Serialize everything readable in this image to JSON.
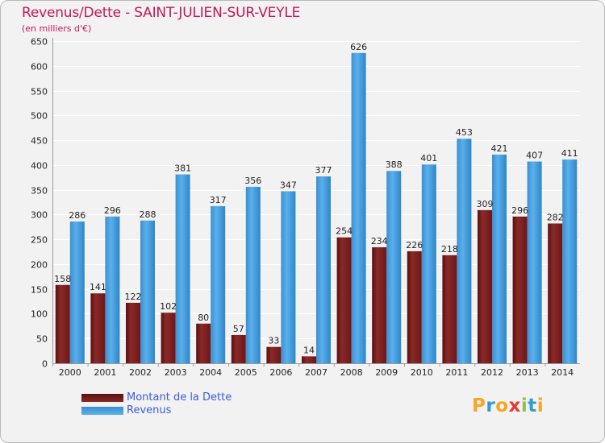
{
  "header": {
    "title": "Revenus/Dette - SAINT-JULIEN-SUR-VEYLE",
    "subtitle": "(en milliers d'€)"
  },
  "legend": {
    "dette_label": "Montant de la Dette",
    "revenus_label": "Revenus"
  },
  "brand": {
    "letters": [
      "P",
      "r",
      "o",
      "x",
      "i",
      "t",
      "i"
    ],
    "colors": [
      "#f5a623",
      "#2e9bd6",
      "#f5a623",
      "#e53935",
      "#8bc34a",
      "#2e9bd6",
      "#f5a623"
    ]
  },
  "colors": {
    "dette": "#7a1c1c",
    "revenus": "#4aa3e3",
    "grid": "#ffffff",
    "title": "#c2185b"
  },
  "chart_data": {
    "type": "bar",
    "title": "Revenus/Dette - SAINT-JULIEN-SUR-VEYLE",
    "ylabel": "(en milliers d'€)",
    "xlabel": "",
    "ylim": [
      0,
      650
    ],
    "yticks": [
      0,
      50,
      100,
      150,
      200,
      250,
      300,
      350,
      400,
      450,
      500,
      550,
      600,
      650
    ],
    "categories": [
      "2000",
      "2001",
      "2002",
      "2003",
      "2004",
      "2005",
      "2006",
      "2007",
      "2008",
      "2009",
      "2010",
      "2011",
      "2012",
      "2013",
      "2014"
    ],
    "series": [
      {
        "name": "Montant de la Dette",
        "color": "#7a1c1c",
        "values": [
          158,
          141,
          122,
          102,
          80,
          57,
          33,
          14,
          254,
          234,
          226,
          218,
          309,
          296,
          282
        ],
        "labels": [
          "158",
          "141",
          "122",
          "102",
          "80",
          "57",
          "33",
          "14",
          "254",
          "234",
          "226",
          "218",
          "309",
          "296",
          "282"
        ]
      },
      {
        "name": "Revenus",
        "color": "#4aa3e3",
        "values": [
          286,
          296,
          288,
          381,
          317,
          356,
          347,
          377,
          626,
          388,
          401,
          453,
          421,
          407,
          411
        ],
        "labels": [
          "286",
          "296",
          "288",
          "381",
          "317",
          "356",
          "347",
          "377",
          "626",
          "388",
          "401",
          "453",
          "421",
          "407",
          "411"
        ]
      }
    ],
    "legend_position": "bottom-left",
    "grid": true
  }
}
